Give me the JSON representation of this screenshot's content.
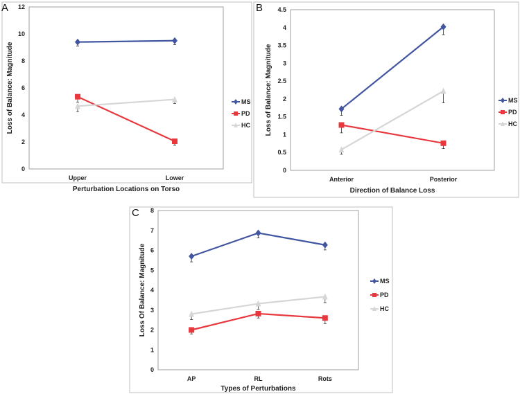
{
  "chart_data": [
    {
      "panel": "A",
      "type": "line",
      "categories": [
        "Upper",
        "Lower"
      ],
      "xlabel": "Perturbation Locations on Torso",
      "ylabel": "Loss of Balance: Magnitude",
      "ylim": [
        0,
        12
      ],
      "yticks": [
        "0",
        "2",
        "4",
        "6",
        "8",
        "10",
        "12"
      ],
      "series": [
        {
          "name": "MS",
          "color": "#4155a0",
          "marker": "diamond",
          "values": [
            9.4,
            9.5
          ],
          "errors": [
            0.3,
            0.3
          ]
        },
        {
          "name": "PD",
          "color": "#e8383d",
          "marker": "square",
          "values": [
            5.35,
            2.05
          ],
          "errors": [
            0.4,
            0.3
          ]
        },
        {
          "name": "HC",
          "color": "#d6d6d6",
          "marker": "triangle",
          "values": [
            4.65,
            5.15
          ],
          "errors": [
            0.4,
            0.3
          ]
        }
      ]
    },
    {
      "panel": "B",
      "type": "line",
      "categories": [
        "Anterior",
        "Posterior"
      ],
      "xlabel": "Direction of Balance Loss",
      "ylabel": "Loss of Balance: Magnitude",
      "ylim": [
        0,
        4.5
      ],
      "yticks": [
        "0",
        "0.5",
        "1",
        "1.5",
        "2",
        "2.5",
        "3",
        "3.5",
        "4",
        "4.5"
      ],
      "series": [
        {
          "name": "MS",
          "color": "#4155a0",
          "marker": "diamond",
          "values": [
            1.72,
            4.02
          ],
          "errors": [
            0.18,
            0.22
          ]
        },
        {
          "name": "PD",
          "color": "#e8383d",
          "marker": "square",
          "values": [
            1.27,
            0.76
          ],
          "errors": [
            0.22,
            0.15
          ]
        },
        {
          "name": "HC",
          "color": "#d6d6d6",
          "marker": "triangle",
          "values": [
            0.58,
            2.22
          ],
          "errors": [
            0.13,
            0.33
          ]
        }
      ]
    },
    {
      "panel": "C",
      "type": "line",
      "categories": [
        "AP",
        "RL",
        "Rots"
      ],
      "xlabel": "Types of Perturbations",
      "ylabel": "Loss Of Balance: Magnitude",
      "ylim": [
        0,
        8
      ],
      "yticks": [
        "0",
        "1",
        "2",
        "3",
        "4",
        "5",
        "6",
        "7",
        "8"
      ],
      "series": [
        {
          "name": "MS",
          "color": "#4155a0",
          "marker": "diamond",
          "values": [
            5.7,
            6.87,
            6.27
          ],
          "errors": [
            0.28,
            0.25,
            0.25
          ]
        },
        {
          "name": "PD",
          "color": "#e8383d",
          "marker": "square",
          "values": [
            2.0,
            2.82,
            2.6
          ],
          "errors": [
            0.2,
            0.22,
            0.28
          ]
        },
        {
          "name": "HC",
          "color": "#d6d6d6",
          "marker": "triangle",
          "values": [
            2.8,
            3.32,
            3.67
          ],
          "errors": [
            0.28,
            0.28,
            0.3
          ]
        }
      ]
    }
  ]
}
